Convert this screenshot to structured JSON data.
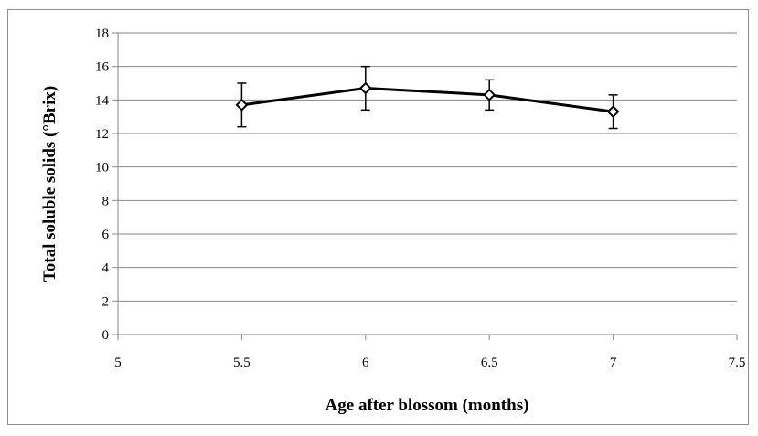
{
  "chart_data": {
    "type": "line",
    "title": "",
    "xlabel": "Age after blossom (months)",
    "ylabel": "Total soluble solids (°Brix)",
    "xlim": [
      5,
      7.5
    ],
    "ylim": [
      0,
      18
    ],
    "x_ticks": [
      "5",
      "5.5",
      "6",
      "6.5",
      "7",
      "7.5"
    ],
    "y_ticks": [
      "0",
      "2",
      "4",
      "6",
      "8",
      "10",
      "12",
      "14",
      "16",
      "18"
    ],
    "grid": "horizontal",
    "series": [
      {
        "x": [
          5.5,
          6,
          6.5,
          7
        ],
        "values": [
          13.7,
          14.7,
          14.3,
          13.3
        ],
        "error_low": [
          12.4,
          13.4,
          13.4,
          12.3
        ],
        "error_high": [
          15.0,
          16.0,
          15.2,
          14.3
        ],
        "marker": "diamond",
        "color": "#000000"
      }
    ]
  }
}
